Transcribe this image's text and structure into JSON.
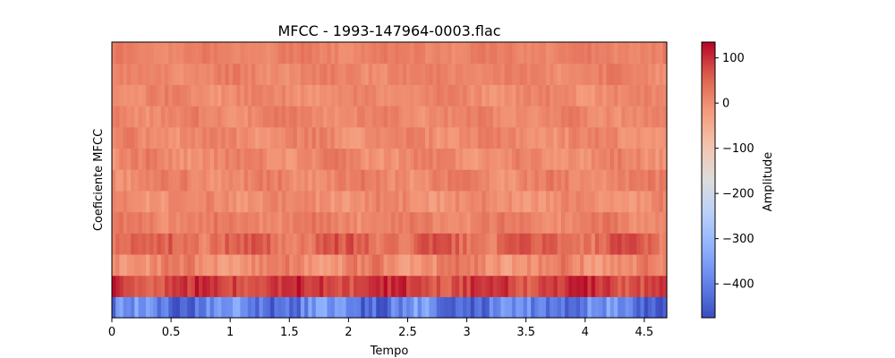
{
  "chart_data": {
    "type": "heatmap",
    "title": "MFCC - 1993-147964-0003.flac",
    "xlabel": "Tempo",
    "ylabel": "Coeficiente MFCC",
    "xlim": [
      0,
      4.69
    ],
    "x_ticks": [
      0,
      0.5,
      1,
      1.5,
      2,
      2.5,
      3,
      3.5,
      4,
      4.5
    ],
    "x_tick_labels": [
      "0",
      "0.5",
      "1",
      "1.5",
      "2",
      "2.5",
      "3",
      "3.5",
      "4",
      "4.5"
    ],
    "n_coefficients": 13,
    "n_frames": 147,
    "colormap": "coolwarm",
    "colorbar": {
      "label": "Amplitude",
      "range": [
        -475,
        135
      ],
      "ticks": [
        100,
        0,
        -100,
        -200,
        -300,
        -400
      ],
      "tick_labels": [
        "100",
        "0",
        "−100",
        "−200",
        "−300",
        "−400"
      ]
    },
    "row_profiles": [
      {
        "coefficient": 1,
        "base": -400,
        "amp": 90
      },
      {
        "coefficient": 2,
        "base": 85,
        "amp": 45
      },
      {
        "coefficient": 3,
        "base": 5,
        "amp": 45
      },
      {
        "coefficient": 4,
        "base": 45,
        "amp": 45
      },
      {
        "coefficient": 5,
        "base": 15,
        "amp": 30
      },
      {
        "coefficient": 6,
        "base": 0,
        "amp": 30
      },
      {
        "coefficient": 7,
        "base": 10,
        "amp": 30
      },
      {
        "coefficient": 8,
        "base": 5,
        "amp": 30
      },
      {
        "coefficient": 9,
        "base": 5,
        "amp": 30
      },
      {
        "coefficient": 10,
        "base": 10,
        "amp": 25
      },
      {
        "coefficient": 11,
        "base": 5,
        "amp": 25
      },
      {
        "coefficient": 12,
        "base": 10,
        "amp": 25
      },
      {
        "coefficient": 13,
        "base": 15,
        "amp": 20
      }
    ]
  }
}
